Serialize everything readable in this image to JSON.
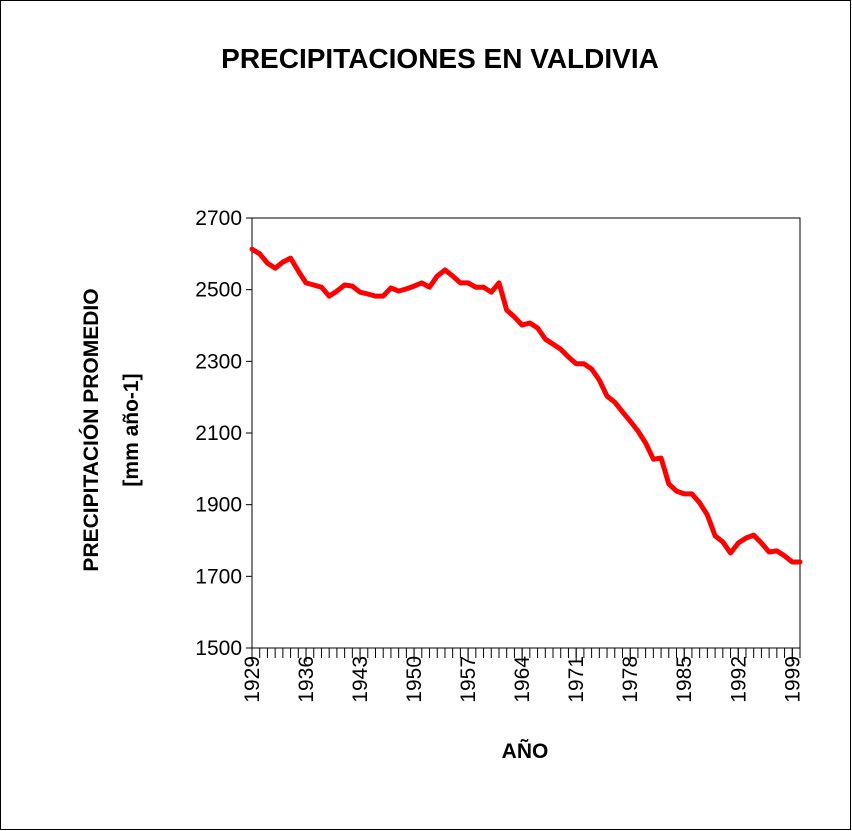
{
  "chart_data": {
    "type": "line",
    "title": "PRECIPITACIONES EN VALDIVIA",
    "y_label": [
      "PRECIPITACIÓN PROMEDIO",
      "[mm año-1]"
    ],
    "x_label": "AÑO",
    "x": [
      1929,
      1930,
      1931,
      1932,
      1933,
      1934,
      1935,
      1936,
      1937,
      1938,
      1939,
      1940,
      1941,
      1942,
      1943,
      1944,
      1945,
      1946,
      1947,
      1948,
      1949,
      1950,
      1951,
      1952,
      1953,
      1954,
      1955,
      1956,
      1957,
      1958,
      1959,
      1960,
      1961,
      1962,
      1963,
      1964,
      1965,
      1966,
      1967,
      1968,
      1969,
      1970,
      1971,
      1972,
      1973,
      1974,
      1975,
      1976,
      1977,
      1978,
      1979,
      1980,
      1981,
      1982,
      1983,
      1984,
      1985,
      1986,
      1987,
      1988,
      1989,
      1990,
      1991,
      1992,
      1993,
      1994,
      1995,
      1996,
      1997,
      1998,
      1999,
      2000
    ],
    "series": [
      {
        "name": "Precipitación promedio",
        "color": "#ff0000",
        "values": [
          2613,
          2600,
          2574,
          2560,
          2577,
          2588,
          2552,
          2519,
          2513,
          2507,
          2482,
          2496,
          2513,
          2510,
          2493,
          2488,
          2482,
          2482,
          2505,
          2496,
          2502,
          2510,
          2519,
          2507,
          2538,
          2555,
          2538,
          2519,
          2519,
          2507,
          2507,
          2493,
          2519,
          2443,
          2424,
          2401,
          2407,
          2393,
          2362,
          2348,
          2334,
          2312,
          2293,
          2293,
          2279,
          2248,
          2203,
          2186,
          2159,
          2133,
          2106,
          2072,
          2027,
          2030,
          1958,
          1938,
          1930,
          1930,
          1905,
          1871,
          1813,
          1796,
          1765,
          1793,
          1807,
          1815,
          1793,
          1768,
          1771,
          1757,
          1740,
          1740
        ]
      }
    ],
    "xlim": [
      1929,
      2000
    ],
    "xticks": [
      1929,
      1936,
      1943,
      1950,
      1957,
      1964,
      1971,
      1978,
      1985,
      1992,
      1999
    ],
    "ylim": [
      1500,
      2700
    ],
    "yticks": [
      1500,
      1700,
      1900,
      2100,
      2300,
      2500,
      2700
    ],
    "grid": false
  }
}
